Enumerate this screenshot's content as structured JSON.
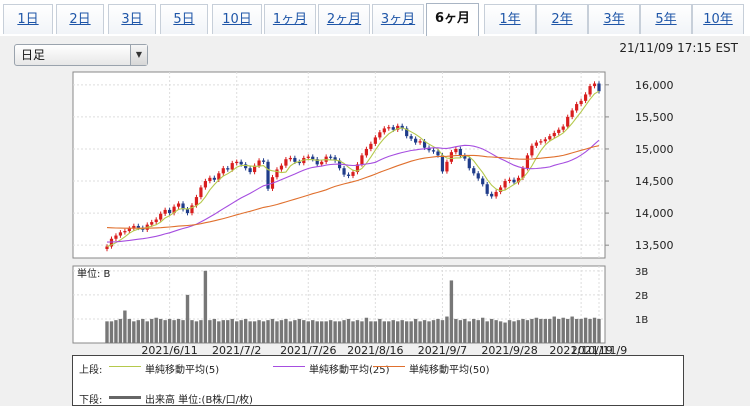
{
  "tabs": [
    {
      "label": "1日"
    },
    {
      "label": "2日"
    },
    {
      "label": "3日"
    },
    {
      "label": "5日"
    },
    {
      "label": "10日"
    },
    {
      "label": "1ヶ月"
    },
    {
      "label": "2ヶ月"
    },
    {
      "label": "3ヶ月"
    },
    {
      "label": "6ヶ月"
    },
    {
      "label": "1年"
    },
    {
      "label": "2年"
    },
    {
      "label": "3年"
    },
    {
      "label": "5年"
    },
    {
      "label": "10年"
    }
  ],
  "active_tab": "6ヶ月",
  "period_select": {
    "value": "日足"
  },
  "timestamp": "21/11/09 17:15 EST",
  "chart_data": {
    "type": "candlestick",
    "price_axis": {
      "ticks": [
        "16,000",
        "15,500",
        "15,000",
        "14,500",
        "14,000",
        "13,500"
      ],
      "ylim": [
        13300,
        16200
      ]
    },
    "volume_axis": {
      "label": "単位: B",
      "ticks": [
        "3B",
        "2B",
        "1B"
      ],
      "ylim": [
        0,
        3.2
      ]
    },
    "x_ticks": [
      "2021/6/11",
      "2021/7/2",
      "2021/7/26",
      "2021/8/16",
      "2021/9/7",
      "2021/9/28",
      "2021/10/19",
      "2021/11/9"
    ],
    "close": [
      13480,
      13600,
      13650,
      13700,
      13720,
      13760,
      13800,
      13770,
      13740,
      13820,
      13860,
      13900,
      13990,
      14050,
      14000,
      14100,
      14150,
      14060,
      14000,
      14120,
      14250,
      14400,
      14500,
      14550,
      14520,
      14620,
      14700,
      14680,
      14780,
      14800,
      14760,
      14700,
      14640,
      14740,
      14820,
      14800,
      14380,
      14560,
      14680,
      14740,
      14840,
      14860,
      14800,
      14780,
      14860,
      14880,
      14840,
      14760,
      14800,
      14880,
      14870,
      14820,
      14700,
      14600,
      14580,
      14640,
      14760,
      14900,
      15000,
      15080,
      15180,
      15260,
      15320,
      15340,
      15300,
      15360,
      15320,
      15200,
      15160,
      15100,
      15120,
      15020,
      14980,
      14960,
      14900,
      14650,
      14800,
      14950,
      15000,
      14900,
      14850,
      14700,
      14620,
      14540,
      14450,
      14300,
      14260,
      14330,
      14400,
      14500,
      14520,
      14480,
      14550,
      14700,
      14900,
      15050,
      15100,
      15120,
      15150,
      15200,
      15250,
      15300,
      15350,
      15500,
      15600,
      15700,
      15750,
      15850,
      15980,
      16020,
      15900
    ],
    "sma_5_start": 13480,
    "sma_25_start": 13550,
    "sma_50_start": 13780,
    "volume": [
      0.9,
      0.9,
      0.95,
      1.0,
      1.35,
      1.0,
      0.9,
      0.95,
      1.0,
      0.9,
      1.0,
      1.05,
      1.0,
      0.95,
      1.0,
      0.95,
      1.0,
      0.95,
      2.0,
      0.95,
      0.9,
      0.95,
      3.0,
      0.95,
      1.0,
      0.9,
      0.95,
      0.95,
      1.0,
      0.9,
      0.95,
      1.0,
      0.9,
      0.9,
      0.95,
      0.9,
      0.95,
      1.0,
      0.9,
      0.95,
      1.0,
      0.9,
      0.95,
      1.0,
      0.95,
      0.9,
      0.95,
      0.9,
      0.9,
      0.9,
      0.95,
      0.9,
      0.9,
      0.95,
      1.0,
      0.9,
      0.95,
      0.9,
      1.05,
      0.9,
      0.9,
      1.0,
      0.9,
      0.9,
      0.95,
      0.9,
      0.95,
      0.9,
      0.9,
      1.0,
      0.9,
      0.95,
      0.9,
      0.95,
      1.0,
      0.95,
      1.1,
      2.6,
      1.0,
      0.95,
      1.0,
      0.9,
      1.0,
      0.95,
      1.05,
      0.9,
      1.0,
      0.95,
      0.9,
      0.85,
      0.95,
      0.9,
      0.95,
      1.0,
      0.95,
      1.0,
      1.05,
      1.0,
      1.0,
      1.0,
      1.1,
      1.0,
      1.05,
      1.0,
      1.1,
      1.0,
      1.0,
      1.05,
      1.0,
      1.05,
      1.0
    ]
  },
  "legend": {
    "upper_label": "上段:",
    "lower_label": "下段:",
    "series": [
      {
        "name": "単純移動平均(5)",
        "color": "#b5c94c"
      },
      {
        "name": "単純移動平均(25)",
        "color": "#a64ee0"
      },
      {
        "name": "単純移動平均(50)",
        "color": "#e0702e"
      }
    ],
    "volume_name": "出来高 単位:(B株/口/枚)",
    "volume_color": "#666666"
  },
  "colors": {
    "up": "#d81e1e",
    "down": "#1f3c8a"
  }
}
